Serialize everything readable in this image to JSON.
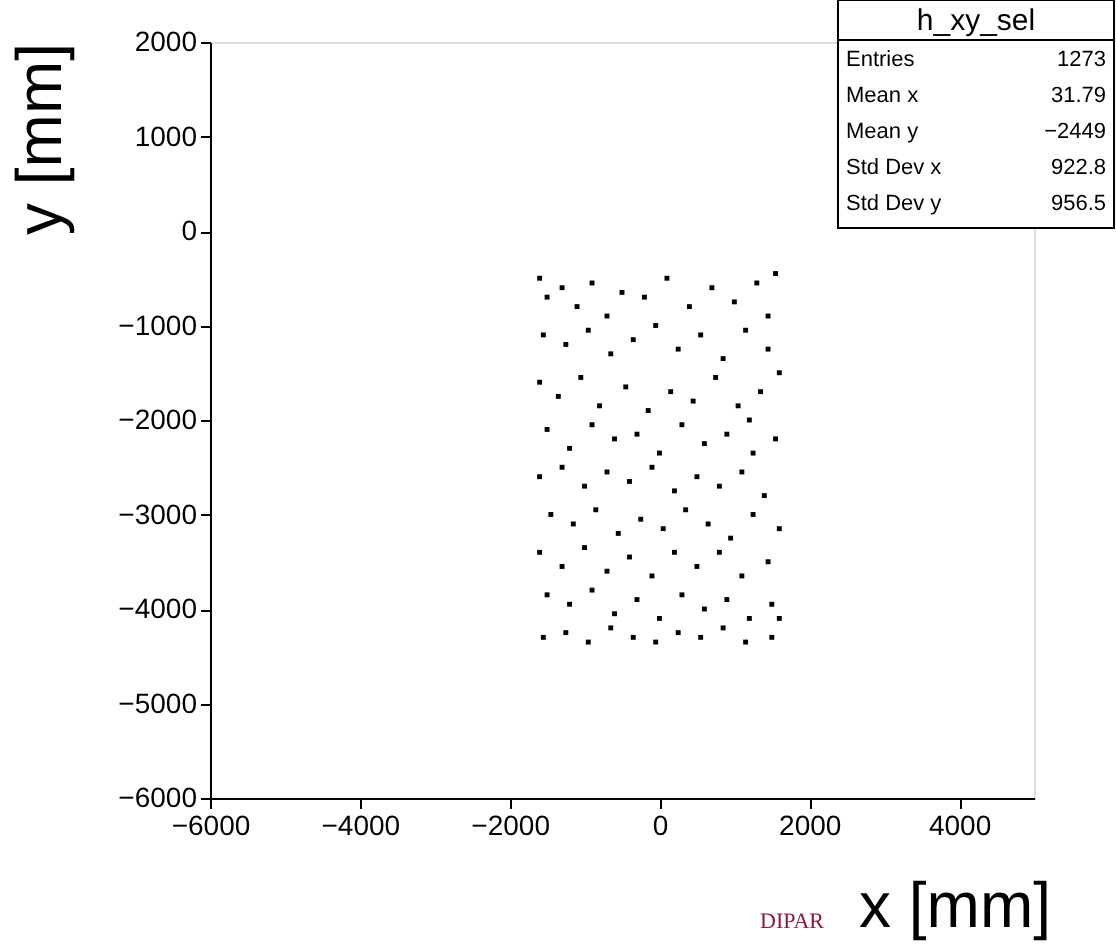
{
  "chart_data": {
    "type": "scatter",
    "xlabel": "x [mm]",
    "ylabel": "y [mm]",
    "x": [
      -1600,
      -1500,
      -1300,
      -1100,
      -900,
      -700,
      -500,
      -200,
      100,
      400,
      700,
      1000,
      1300,
      1550,
      1450,
      -1550,
      -1250,
      -950,
      -650,
      -350,
      -50,
      250,
      550,
      850,
      1150,
      1450,
      1600,
      -1600,
      -1350,
      -1050,
      -800,
      -450,
      -150,
      150,
      450,
      750,
      1050,
      1350,
      1200,
      -1500,
      -1200,
      -900,
      -600,
      -300,
      0,
      300,
      600,
      900,
      1250,
      1550,
      -1600,
      -1300,
      -1000,
      -700,
      -400,
      -100,
      200,
      500,
      800,
      1100,
      1400,
      -1450,
      -1150,
      -850,
      -550,
      -250,
      50,
      350,
      650,
      950,
      1250,
      1600,
      -1600,
      -1300,
      -1000,
      -700,
      -400,
      -100,
      200,
      500,
      800,
      1100,
      1450,
      -1500,
      -1200,
      -900,
      -600,
      -300,
      0,
      300,
      600,
      900,
      1200,
      1500,
      -1550,
      -1250,
      -950,
      -650,
      -350,
      -50,
      250,
      550,
      850,
      1150,
      1500,
      1600
    ],
    "values": [
      -500,
      -700,
      -600,
      -800,
      -550,
      -900,
      -650,
      -700,
      -500,
      -800,
      -600,
      -750,
      -550,
      -450,
      -900,
      -1100,
      -1200,
      -1050,
      -1300,
      -1150,
      -1000,
      -1250,
      -1100,
      -1350,
      -1050,
      -1250,
      -1500,
      -1600,
      -1750,
      -1550,
      -1850,
      -1650,
      -1900,
      -1700,
      -1800,
      -1550,
      -1850,
      -1700,
      -2000,
      -2100,
      -2300,
      -2050,
      -2200,
      -2150,
      -2350,
      -2050,
      -2250,
      -2150,
      -2350,
      -2200,
      -2600,
      -2500,
      -2700,
      -2550,
      -2650,
      -2500,
      -2750,
      -2600,
      -2700,
      -2550,
      -2800,
      -3000,
      -3100,
      -2950,
      -3200,
      -3050,
      -3150,
      -2950,
      -3100,
      -3250,
      -3000,
      -3150,
      -3400,
      -3550,
      -3350,
      -3600,
      -3450,
      -3650,
      -3400,
      -3550,
      -3400,
      -3650,
      -3500,
      -3850,
      -3950,
      -3800,
      -4050,
      -3900,
      -4100,
      -3850,
      -4000,
      -3900,
      -4100,
      -3950,
      -4300,
      -4250,
      -4350,
      -4200,
      -4300,
      -4350,
      -4250,
      -4300,
      -4200,
      -4350,
      -4300,
      -4100
    ],
    "color": "#000000",
    "marker": "square",
    "xlim": [
      -6000,
      5000
    ],
    "xticks": [
      -6000,
      -4000,
      -2000,
      0,
      2000,
      4000
    ],
    "ylim": [
      -6000,
      2000
    ],
    "yticks": [
      -6000,
      -5000,
      -4000,
      -3000,
      -2000,
      -1000,
      0,
      1000,
      2000
    ],
    "grid": false,
    "annotations": [
      "h_xy_sel",
      "Entries 1273",
      "Mean x 31.79",
      "Mean y −2449",
      "Std Dev x 922.8",
      "Std Dev y 956.5",
      "DIPAR"
    ]
  }
}
